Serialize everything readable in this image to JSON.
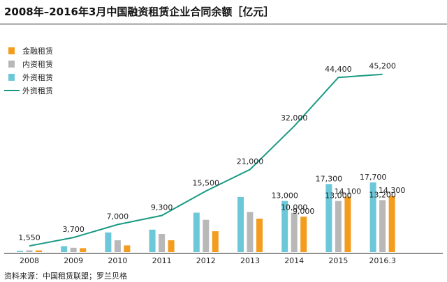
{
  "chart_data": {
    "type": "bar",
    "title": "2008年–2016年3月中国融资租赁企业合同余额［亿元］",
    "source": "资料来源：中国租赁联盟；罗兰贝格",
    "categories": [
      "2008",
      "2009",
      "2010",
      "2011",
      "2012",
      "2013",
      "2014",
      "2015",
      "2016.3"
    ],
    "series": [
      {
        "name": "金融租赁",
        "kind": "bar",
        "color": "#f39c1e",
        "values": [
          420,
          1000,
          1700,
          3000,
          5300,
          8500,
          9000,
          14100,
          14300
        ],
        "labels": [
          null,
          null,
          null,
          null,
          null,
          null,
          "9,000",
          "14,100",
          "14,300"
        ]
      },
      {
        "name": "内资租赁",
        "kind": "bar",
        "color": "#b8b8b8",
        "values": [
          450,
          1100,
          3000,
          4600,
          8200,
          10200,
          10000,
          13000,
          13200
        ],
        "labels": [
          null,
          null,
          null,
          null,
          null,
          null,
          "10,000",
          "13,000",
          "13,200"
        ]
      },
      {
        "name": "外资租赁",
        "kind": "bar",
        "color": "#6cc8d9",
        "values": [
          300,
          1500,
          5000,
          5700,
          10000,
          14000,
          13000,
          17300,
          17700
        ],
        "labels": [
          null,
          null,
          null,
          null,
          null,
          null,
          "13,000",
          "17,300",
          "17,700"
        ]
      },
      {
        "name": "外资租赁",
        "kind": "line",
        "color": "#1a9a83",
        "values": [
          1550,
          3700,
          7000,
          9300,
          15500,
          21000,
          32000,
          44400,
          45200
        ],
        "labels": [
          "1,550",
          "3,700",
          "7,000",
          "9,300",
          "15,500",
          "21,000",
          "32,000",
          "44,400",
          "45,200"
        ]
      }
    ],
    "ylim": [
      0,
      57000
    ],
    "legend_position": "top-left",
    "grid": false
  }
}
